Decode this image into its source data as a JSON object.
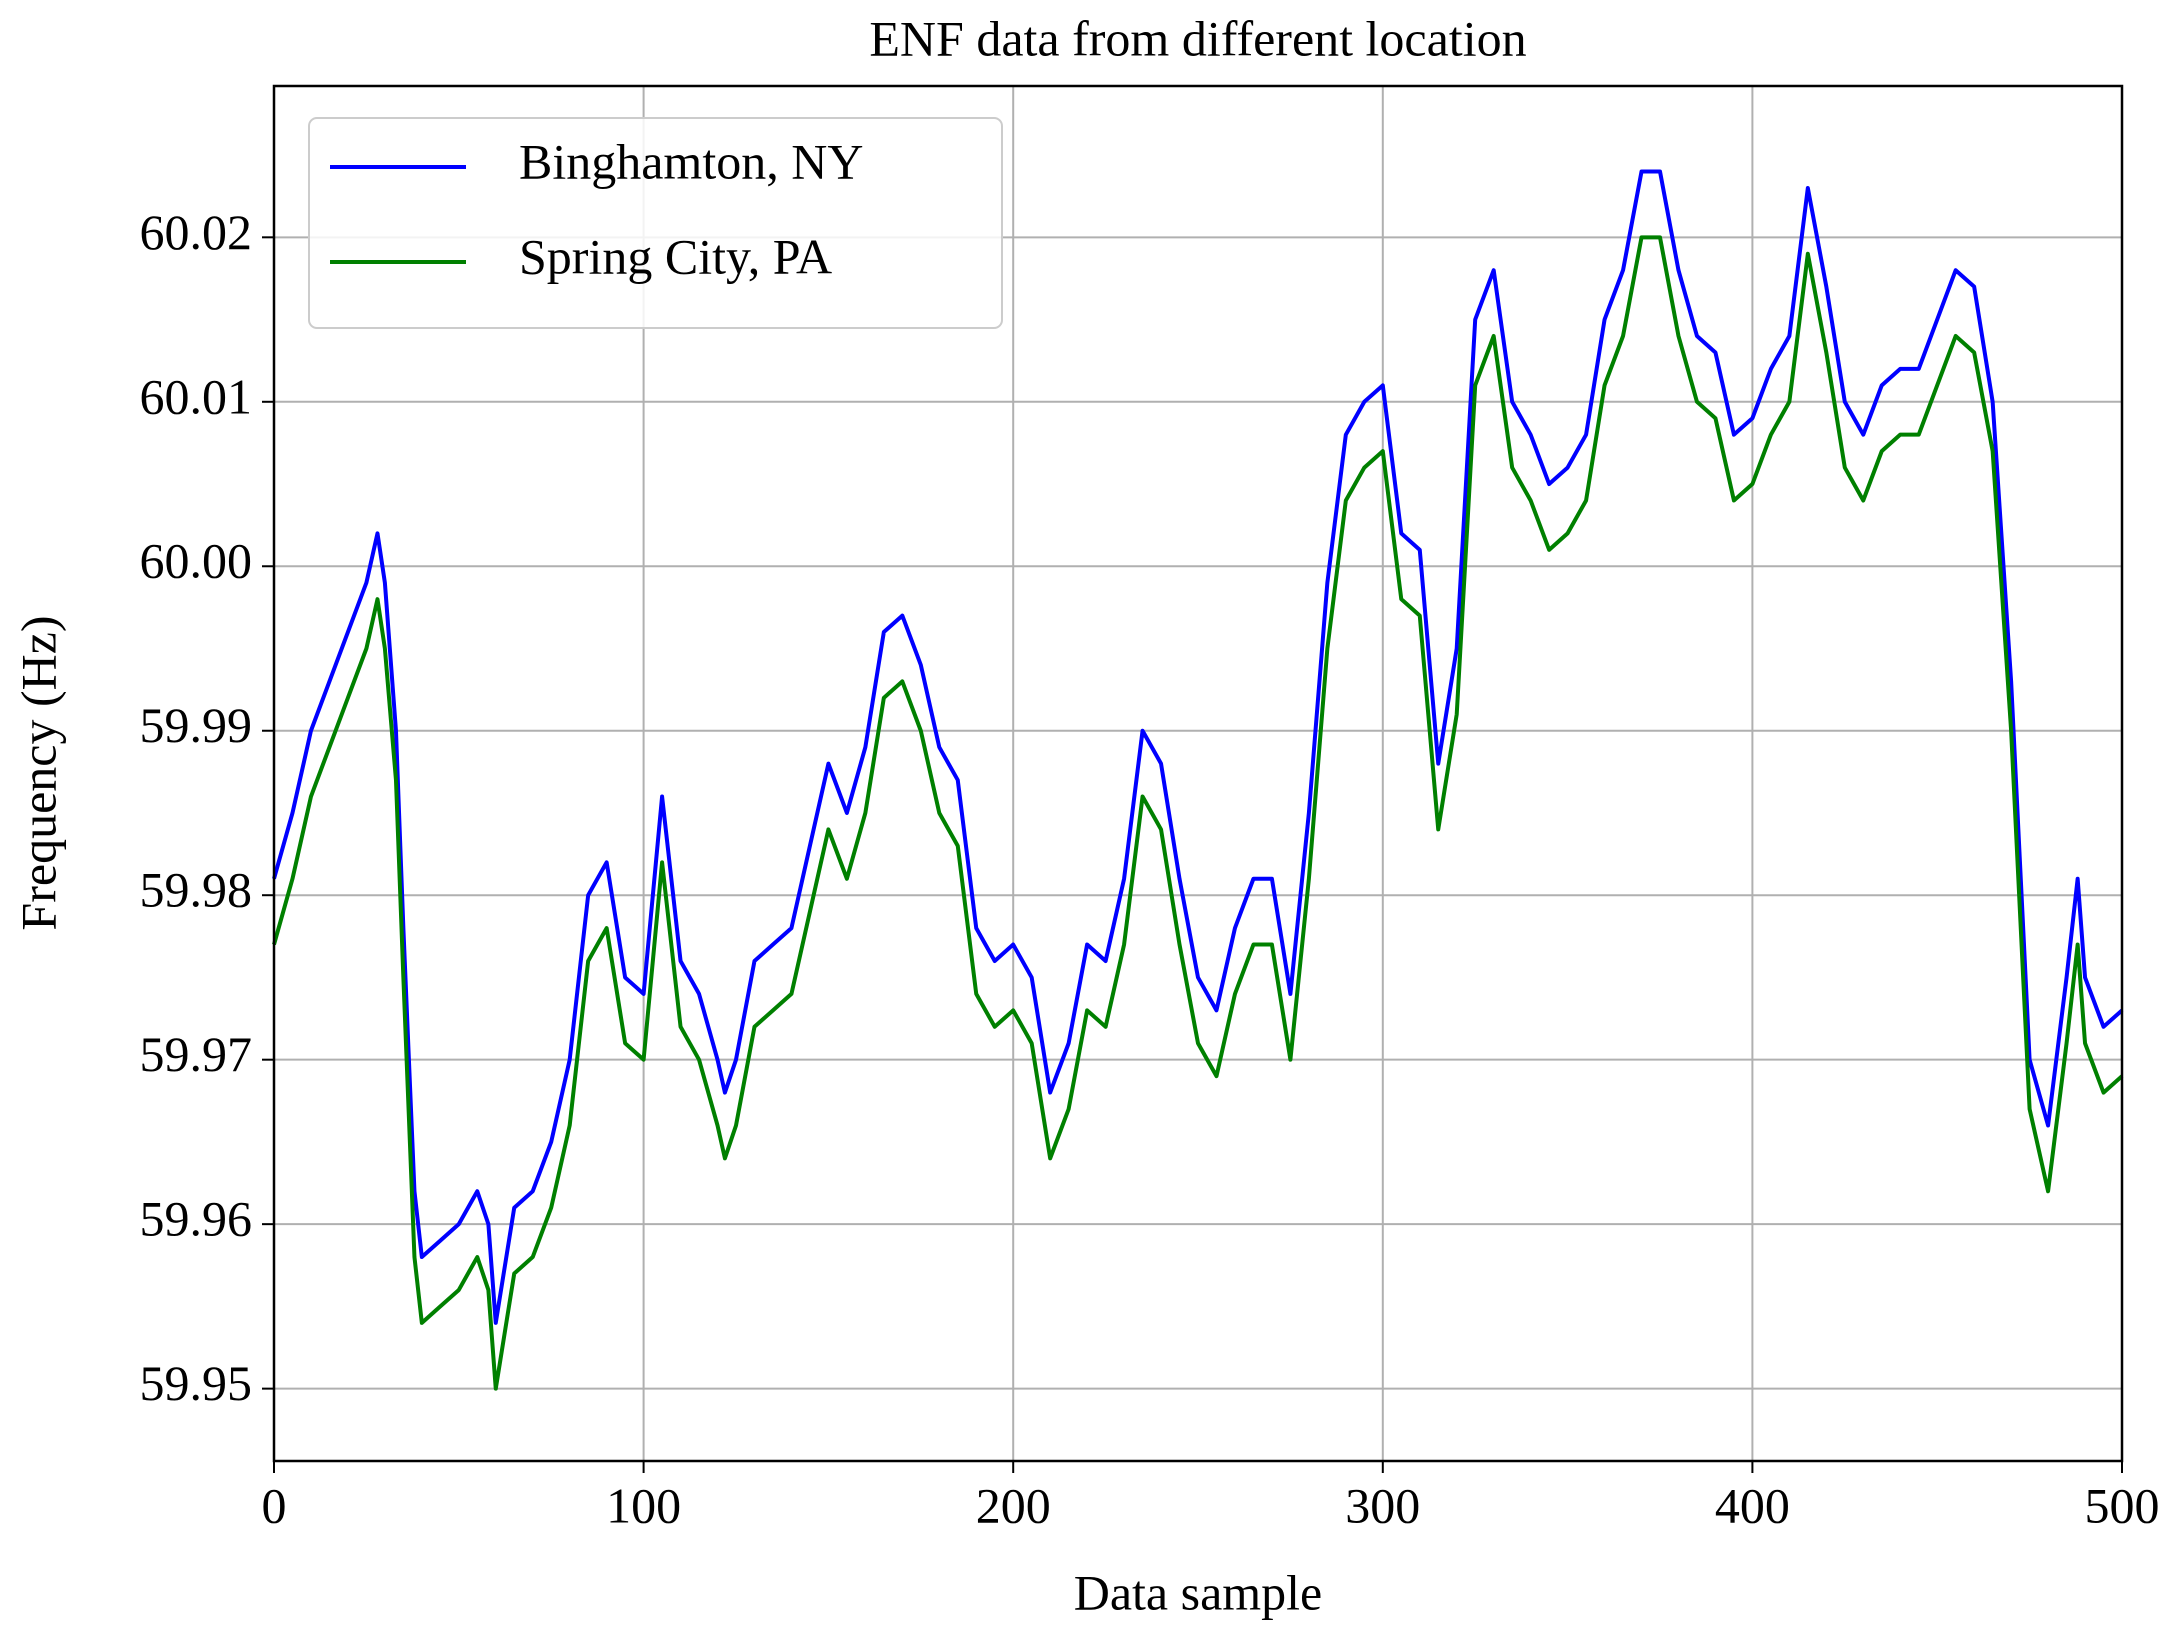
{
  "chart_data": {
    "type": "line",
    "title": "ENF data from different location",
    "xlabel": "Data sample",
    "ylabel": "Frequency (Hz)",
    "xlim": [
      0,
      500
    ],
    "ylim": [
      59.9456,
      60.0292
    ],
    "xticks": [
      0,
      100,
      200,
      300,
      400,
      500
    ],
    "yticks": [
      59.95,
      59.96,
      59.97,
      59.98,
      59.99,
      {
        "value": 60,
        "label": "60.00"
      },
      60.01,
      60.02
    ],
    "grid": true,
    "legend": "upper left",
    "x": [
      0,
      5,
      10,
      15,
      20,
      25,
      28,
      30,
      33,
      35,
      38,
      40,
      45,
      50,
      55,
      58,
      60,
      65,
      70,
      75,
      80,
      85,
      90,
      95,
      100,
      105,
      110,
      115,
      120,
      122,
      125,
      130,
      135,
      140,
      145,
      150,
      155,
      160,
      165,
      170,
      175,
      180,
      185,
      190,
      195,
      200,
      205,
      210,
      215,
      220,
      225,
      230,
      235,
      240,
      245,
      250,
      255,
      260,
      265,
      270,
      275,
      280,
      285,
      290,
      295,
      300,
      305,
      310,
      315,
      320,
      325,
      330,
      335,
      340,
      345,
      350,
      355,
      360,
      365,
      370,
      375,
      380,
      385,
      390,
      395,
      400,
      405,
      410,
      415,
      420,
      425,
      430,
      435,
      440,
      445,
      450,
      455,
      460,
      465,
      470,
      475,
      480,
      485,
      488,
      490,
      495,
      500
    ],
    "series": [
      {
        "name": "Binghamton, NY",
        "color": "#0000ff",
        "values": [
          59.981,
          59.985,
          59.99,
          59.993,
          59.996,
          59.999,
          60.002,
          59.999,
          59.99,
          59.978,
          59.962,
          59.958,
          59.959,
          59.96,
          59.962,
          59.96,
          59.954,
          59.961,
          59.962,
          59.965,
          59.97,
          59.98,
          59.982,
          59.975,
          59.974,
          59.986,
          59.976,
          59.974,
          59.97,
          59.968,
          59.97,
          59.976,
          59.977,
          59.978,
          59.983,
          59.988,
          59.985,
          59.989,
          59.996,
          59.997,
          59.994,
          59.989,
          59.987,
          59.978,
          59.976,
          59.977,
          59.975,
          59.968,
          59.971,
          59.977,
          59.976,
          59.981,
          59.99,
          59.988,
          59.981,
          59.975,
          59.973,
          59.978,
          59.981,
          59.981,
          59.974,
          59.985,
          59.999,
          60.008,
          60.01,
          60.011,
          60.002,
          60.001,
          59.988,
          59.995,
          60.015,
          60.018,
          60.01,
          60.008,
          60.005,
          60.006,
          60.008,
          60.015,
          60.018,
          60.024,
          60.024,
          60.018,
          60.014,
          60.013,
          60.008,
          60.009,
          60.012,
          60.014,
          60.023,
          60.017,
          60.01,
          60.008,
          60.011,
          60.012,
          60.012,
          60.015,
          60.018,
          60.017,
          60.01,
          59.993,
          59.97,
          59.966,
          59.975,
          59.981,
          59.975,
          59.972,
          59.973
        ]
      },
      {
        "name": "Spring City, PA",
        "color": "#008000",
        "values": [
          59.977,
          59.981,
          59.986,
          59.989,
          59.992,
          59.995,
          59.998,
          59.995,
          59.987,
          59.975,
          59.958,
          59.954,
          59.955,
          59.956,
          59.958,
          59.956,
          59.95,
          59.957,
          59.958,
          59.961,
          59.966,
          59.976,
          59.978,
          59.971,
          59.97,
          59.982,
          59.972,
          59.97,
          59.966,
          59.964,
          59.966,
          59.972,
          59.973,
          59.974,
          59.979,
          59.984,
          59.981,
          59.985,
          59.992,
          59.993,
          59.99,
          59.985,
          59.983,
          59.974,
          59.972,
          59.973,
          59.971,
          59.964,
          59.967,
          59.973,
          59.972,
          59.977,
          59.986,
          59.984,
          59.977,
          59.971,
          59.969,
          59.974,
          59.977,
          59.977,
          59.97,
          59.981,
          59.995,
          60.004,
          60.006,
          60.007,
          59.998,
          59.997,
          59.984,
          59.991,
          60.011,
          60.014,
          60.006,
          60.004,
          60.001,
          60.002,
          60.004,
          60.011,
          60.014,
          60.02,
          60.02,
          60.014,
          60.01,
          60.009,
          60.004,
          60.005,
          60.008,
          60.01,
          60.019,
          60.013,
          60.006,
          60.004,
          60.007,
          60.008,
          60.008,
          60.011,
          60.014,
          60.013,
          60.007,
          59.99,
          59.967,
          59.962,
          59.971,
          59.977,
          59.971,
          59.968,
          59.969
        ]
      }
    ]
  }
}
